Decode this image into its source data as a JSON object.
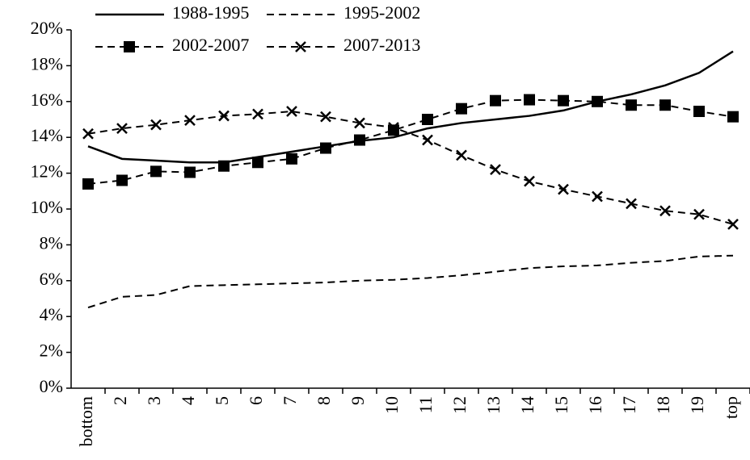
{
  "chart_data": {
    "type": "line",
    "categories": [
      "bottom",
      "2",
      "3",
      "4",
      "5",
      "6",
      "7",
      "8",
      "9",
      "10",
      "11",
      "12",
      "13",
      "14",
      "15",
      "16",
      "17",
      "18",
      "19",
      "top"
    ],
    "series": [
      {
        "name": "1988-1995",
        "color": "#000000",
        "dash": "solid",
        "marker": "none",
        "values": [
          13.5,
          12.8,
          12.7,
          12.6,
          12.6,
          12.9,
          13.2,
          13.5,
          13.8,
          14.0,
          14.5,
          14.8,
          15.0,
          15.2,
          15.5,
          16.0,
          16.4,
          16.9,
          17.6,
          18.8
        ]
      },
      {
        "name": "1995-2002",
        "color": "#000000",
        "dash": "dashed",
        "marker": "none",
        "values": [
          4.5,
          5.1,
          5.2,
          5.7,
          5.75,
          5.8,
          5.85,
          5.9,
          6.0,
          6.05,
          6.15,
          6.3,
          6.5,
          6.7,
          6.8,
          6.85,
          7.0,
          7.1,
          7.35,
          7.4
        ]
      },
      {
        "name": "2002-2007",
        "color": "#000000",
        "dash": "dashed",
        "marker": "square",
        "values": [
          11.4,
          11.6,
          12.1,
          12.05,
          12.4,
          12.6,
          12.8,
          13.4,
          13.85,
          14.4,
          15.0,
          15.6,
          16.05,
          16.1,
          16.05,
          16.0,
          15.8,
          15.8,
          15.45,
          15.15
        ]
      },
      {
        "name": "2007-2013",
        "color": "#000000",
        "dash": "dashed",
        "marker": "x",
        "values": [
          14.2,
          14.5,
          14.7,
          14.95,
          15.2,
          15.3,
          15.45,
          15.15,
          14.8,
          14.55,
          13.85,
          13.0,
          12.2,
          11.55,
          11.1,
          10.7,
          10.3,
          9.9,
          9.7,
          9.15
        ]
      }
    ],
    "ylim": [
      0,
      20
    ],
    "yticks": [
      {
        "value": 0,
        "label": "0%"
      },
      {
        "value": 2,
        "label": "2%"
      },
      {
        "value": 4,
        "label": "4%"
      },
      {
        "value": 6,
        "label": "6%"
      },
      {
        "value": 8,
        "label": "8%"
      },
      {
        "value": 10,
        "label": "10%"
      },
      {
        "value": 12,
        "label": "12%"
      },
      {
        "value": 14,
        "label": "14%"
      },
      {
        "value": 16,
        "label": "16%"
      },
      {
        "value": 18,
        "label": "18%"
      },
      {
        "value": 20,
        "label": "20%"
      }
    ],
    "grid": false,
    "legend": "top"
  }
}
